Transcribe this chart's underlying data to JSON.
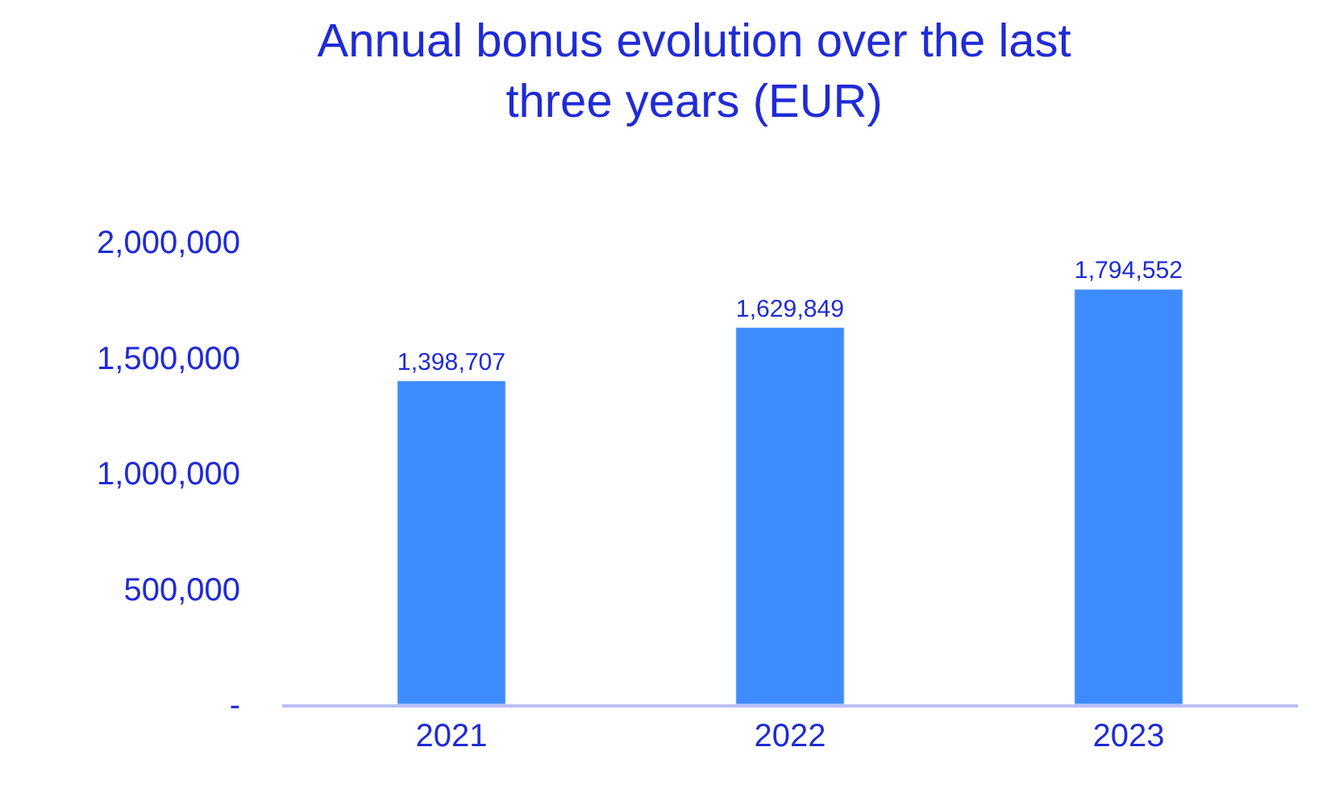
{
  "chart_data": {
    "type": "bar",
    "title": "Annual bonus evolution over the last three years (EUR)",
    "categories": [
      "2021",
      "2022",
      "2023"
    ],
    "values": [
      1398707,
      1629849,
      1794552
    ],
    "color": "#3d8bfd",
    "ylim": [
      0,
      2000000
    ],
    "yticks": [
      {
        "value": 0,
        "label": "-"
      },
      {
        "value": 500000,
        "label": "500,000"
      },
      {
        "value": 1000000,
        "label": "1,000,000"
      },
      {
        "value": 1500000,
        "label": "1,500,000"
      },
      {
        "value": 2000000,
        "label": "2,000,000"
      }
    ],
    "value_labels": [
      "1,398,707",
      "1,629,849",
      "1,794,552"
    ]
  }
}
